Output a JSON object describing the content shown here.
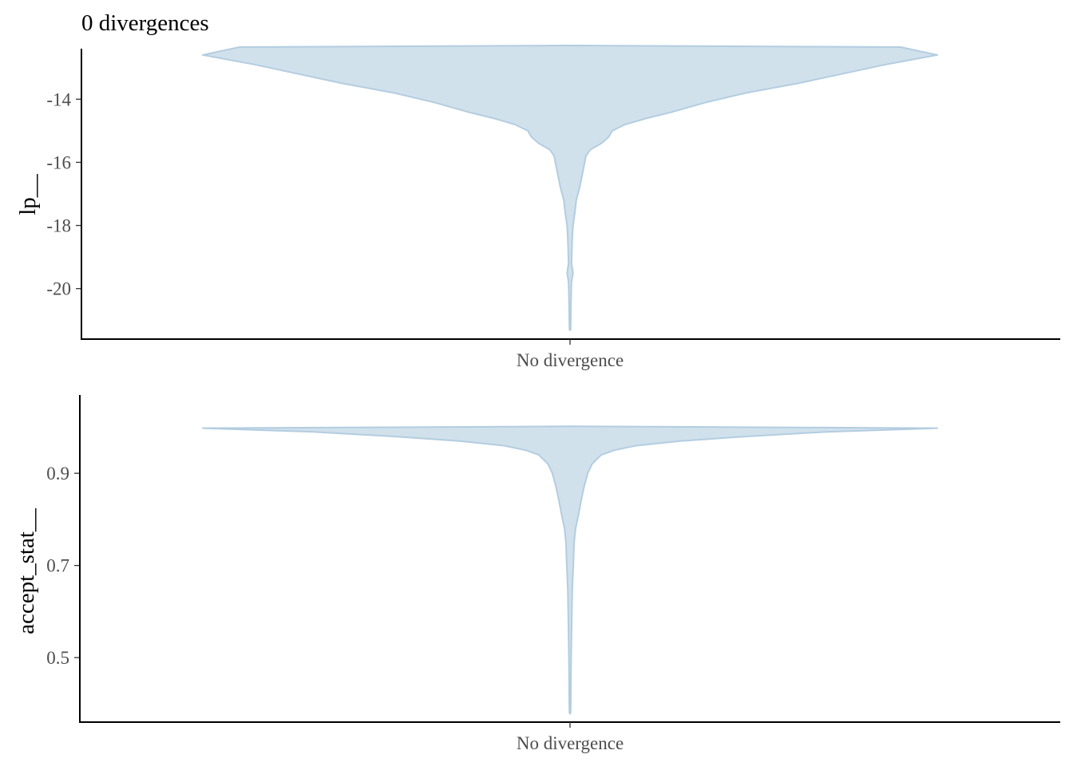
{
  "chart_data": [
    {
      "type": "violin",
      "title": "0 divergences",
      "ylabel": "lp__",
      "xlabel": "",
      "categories": [
        "No divergence"
      ],
      "ylim": [
        -21.6,
        -12.4
      ],
      "yticks": [
        -14,
        -16,
        -18,
        -20
      ],
      "ytick_labels": [
        "-14",
        "-16",
        "-18",
        "-20"
      ],
      "grid": false,
      "color_fill": "#d1e1ec",
      "color_outline": "#b3cde0",
      "density_profile": [
        {
          "y": -12.3,
          "w": 0.0
        },
        {
          "y": -12.35,
          "w": 0.9
        },
        {
          "y": -12.6,
          "w": 1.0
        },
        {
          "y": -12.9,
          "w": 0.86
        },
        {
          "y": -13.2,
          "w": 0.74
        },
        {
          "y": -13.5,
          "w": 0.62
        },
        {
          "y": -13.8,
          "w": 0.48
        },
        {
          "y": -14.1,
          "w": 0.37
        },
        {
          "y": -14.4,
          "w": 0.28
        },
        {
          "y": -14.6,
          "w": 0.21
        },
        {
          "y": -14.8,
          "w": 0.15
        },
        {
          "y": -15.0,
          "w": 0.115
        },
        {
          "y": -15.2,
          "w": 0.105
        },
        {
          "y": -15.4,
          "w": 0.085
        },
        {
          "y": -15.6,
          "w": 0.055
        },
        {
          "y": -15.8,
          "w": 0.043
        },
        {
          "y": -16.0,
          "w": 0.04
        },
        {
          "y": -16.4,
          "w": 0.033
        },
        {
          "y": -16.8,
          "w": 0.026
        },
        {
          "y": -17.2,
          "w": 0.017
        },
        {
          "y": -17.6,
          "w": 0.013
        },
        {
          "y": -18.0,
          "w": 0.008
        },
        {
          "y": -18.4,
          "w": 0.006
        },
        {
          "y": -18.8,
          "w": 0.005
        },
        {
          "y": -19.2,
          "w": 0.004
        },
        {
          "y": -19.5,
          "w": 0.008
        },
        {
          "y": -19.8,
          "w": 0.004
        },
        {
          "y": -20.2,
          "w": 0.003
        },
        {
          "y": -20.6,
          "w": 0.0025
        },
        {
          "y": -21.0,
          "w": 0.002
        },
        {
          "y": -21.3,
          "w": 0.0015
        },
        {
          "y": -21.32,
          "w": 0.0
        }
      ]
    },
    {
      "type": "violin",
      "title": "",
      "ylabel": "accept_stat__",
      "xlabel": "",
      "categories": [
        "No divergence"
      ],
      "ylim": [
        0.36,
        1.07
      ],
      "yticks": [
        0.9,
        0.7,
        0.5
      ],
      "ytick_labels": [
        "0.9",
        "0.7",
        "0.5"
      ],
      "grid": false,
      "color_fill": "#d1e1ec",
      "color_outline": "#b3cde0",
      "density_profile": [
        {
          "y": 1.002,
          "w": 0.0
        },
        {
          "y": 0.998,
          "w": 1.0
        },
        {
          "y": 0.99,
          "w": 0.7
        },
        {
          "y": 0.98,
          "w": 0.48
        },
        {
          "y": 0.97,
          "w": 0.3
        },
        {
          "y": 0.96,
          "w": 0.18
        },
        {
          "y": 0.95,
          "w": 0.12
        },
        {
          "y": 0.94,
          "w": 0.085
        },
        {
          "y": 0.92,
          "w": 0.06
        },
        {
          "y": 0.9,
          "w": 0.048
        },
        {
          "y": 0.87,
          "w": 0.038
        },
        {
          "y": 0.84,
          "w": 0.03
        },
        {
          "y": 0.81,
          "w": 0.023
        },
        {
          "y": 0.78,
          "w": 0.015
        },
        {
          "y": 0.75,
          "w": 0.011
        },
        {
          "y": 0.7,
          "w": 0.009
        },
        {
          "y": 0.65,
          "w": 0.006
        },
        {
          "y": 0.6,
          "w": 0.005
        },
        {
          "y": 0.55,
          "w": 0.004
        },
        {
          "y": 0.5,
          "w": 0.003
        },
        {
          "y": 0.45,
          "w": 0.0025
        },
        {
          "y": 0.4,
          "w": 0.002
        },
        {
          "y": 0.38,
          "w": 0.0015
        },
        {
          "y": 0.378,
          "w": 0.0
        }
      ]
    }
  ]
}
